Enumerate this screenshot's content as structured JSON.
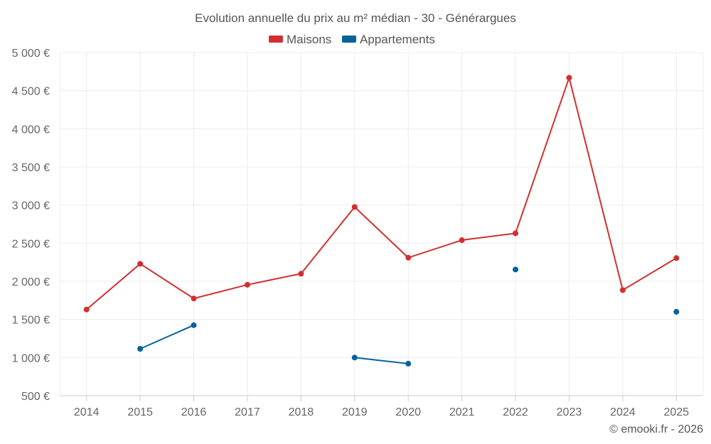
{
  "chart_data": {
    "type": "line",
    "title": "Evolution annuelle du prix au m² médian - 30 - Générargues",
    "categories": [
      "2014",
      "2015",
      "2016",
      "2017",
      "2018",
      "2019",
      "2020",
      "2021",
      "2022",
      "2023",
      "2024",
      "2025"
    ],
    "ylim": [
      500,
      5000
    ],
    "yticks": [
      500,
      1000,
      1500,
      2000,
      2500,
      3000,
      3500,
      4000,
      4500,
      5000
    ],
    "ytick_labels": [
      "500 €",
      "1 000 €",
      "1 500 €",
      "2 000 €",
      "2 500 €",
      "3 000 €",
      "3 500 €",
      "4 000 €",
      "4 500 €",
      "5 000 €"
    ],
    "grid": true,
    "legend_position": "top-center",
    "series": [
      {
        "name": "Maisons",
        "color": "#d32f2f",
        "values": [
          1630,
          2230,
          1775,
          1955,
          2100,
          2975,
          2310,
          2540,
          2630,
          4670,
          1885,
          2305
        ]
      },
      {
        "name": "Appartements",
        "color": "#01629c",
        "values": [
          null,
          1115,
          1425,
          null,
          null,
          1000,
          920,
          null,
          2155,
          null,
          null,
          1600
        ]
      }
    ],
    "credit": "© emooki.fr - 2026"
  }
}
